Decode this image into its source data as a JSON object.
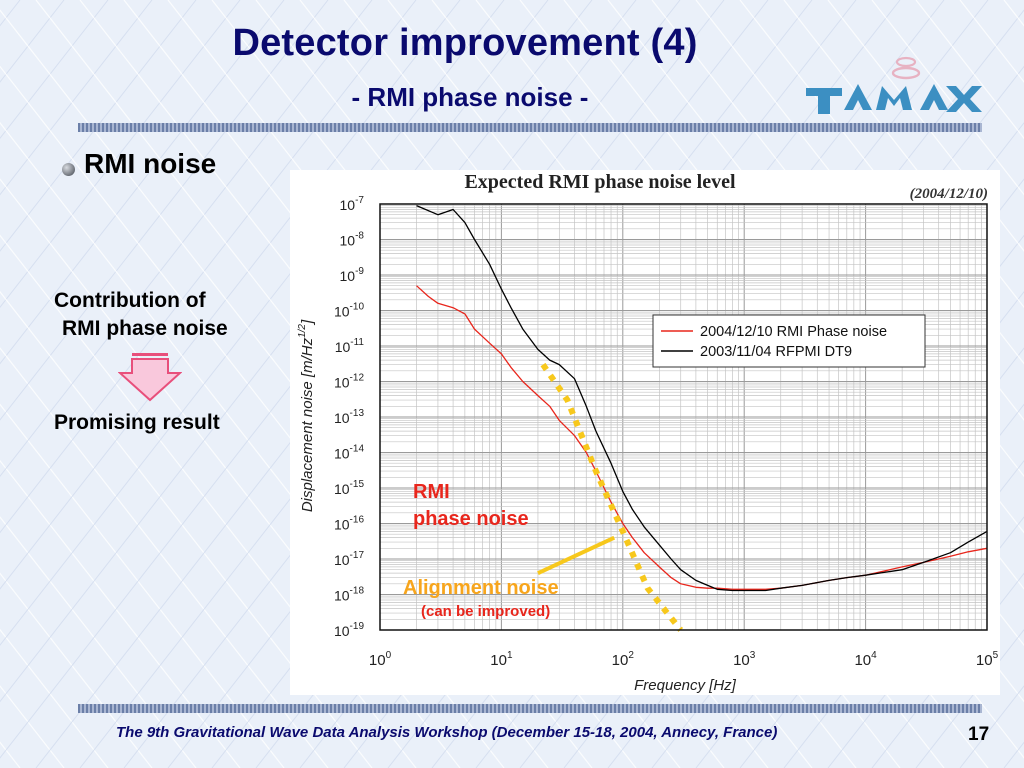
{
  "slide": {
    "title": "Detector improvement (4)",
    "subtitle": "- RMI phase noise -",
    "bullet": "RMI noise",
    "contribution_line1": "Contribution of",
    "contribution_line2": "RMI phase noise",
    "result": "Promising result",
    "footer": "The 9th Gravitational Wave Data Analysis Workshop  (December 15-18, 2004, Annecy, France)",
    "page_number": "17",
    "logo_icon": "tama-logo-icon"
  },
  "chart_data": {
    "type": "line",
    "title": "Expected RMI phase noise level",
    "date_note": "(2004/12/10)",
    "xlabel": "Frequency [Hz]",
    "ylabel": "Displacement noise [m/Hz",
    "ylabel_sup": "1/2",
    "ylabel_end": "]",
    "x_scale": "log",
    "y_scale": "log",
    "xlim": [
      1,
      100000
    ],
    "ylim": [
      1e-19,
      1e-07
    ],
    "x_ticks": [
      {
        "base": "10",
        "exp": "0",
        "value": 1
      },
      {
        "base": "10",
        "exp": "1",
        "value": 10
      },
      {
        "base": "10",
        "exp": "2",
        "value": 100
      },
      {
        "base": "10",
        "exp": "3",
        "value": 1000
      },
      {
        "base": "10",
        "exp": "4",
        "value": 10000
      },
      {
        "base": "10",
        "exp": "5",
        "value": 100000
      }
    ],
    "y_ticks": [
      {
        "base": "10",
        "exp": "-7",
        "value": 1e-07
      },
      {
        "base": "10",
        "exp": "-8",
        "value": 1e-08
      },
      {
        "base": "10",
        "exp": "-9",
        "value": 1e-09
      },
      {
        "base": "10",
        "exp": "-10",
        "value": 1e-10
      },
      {
        "base": "10",
        "exp": "-11",
        "value": 1e-11
      },
      {
        "base": "10",
        "exp": "-12",
        "value": 1e-12
      },
      {
        "base": "10",
        "exp": "-13",
        "value": 1e-13
      },
      {
        "base": "10",
        "exp": "-14",
        "value": 1e-14
      },
      {
        "base": "10",
        "exp": "-15",
        "value": 1e-15
      },
      {
        "base": "10",
        "exp": "-16",
        "value": 1e-16
      },
      {
        "base": "10",
        "exp": "-17",
        "value": 1e-17
      },
      {
        "base": "10",
        "exp": "-18",
        "value": 1e-18
      },
      {
        "base": "10",
        "exp": "-19",
        "value": 1e-19
      }
    ],
    "grid": true,
    "legend_position": "right-middle",
    "series": [
      {
        "name": "2004/12/10 RMI Phase noise",
        "color": "#e8261c",
        "x": [
          2,
          2.5,
          3,
          4,
          5,
          6,
          8,
          10,
          12,
          15,
          20,
          25,
          30,
          40,
          50,
          60,
          80,
          100,
          120,
          150,
          200,
          250,
          300,
          400,
          500,
          600,
          800,
          1000,
          1500,
          2000,
          3000,
          5000,
          7000,
          10000,
          20000,
          30000,
          50000,
          70000,
          100000
        ],
        "y": [
          5e-10,
          2.5e-10,
          1.6e-10,
          1.2e-10,
          8e-11,
          3e-11,
          1.2e-11,
          6e-12,
          2.5e-12,
          1e-12,
          4e-13,
          2e-13,
          8e-14,
          3e-14,
          1e-14,
          3e-15,
          4e-16,
          1e-16,
          4e-17,
          1.5e-17,
          6e-18,
          3e-18,
          2e-18,
          1.6e-18,
          1.5e-18,
          1.5e-18,
          1.4e-18,
          1.4e-18,
          1.4e-18,
          1.5e-18,
          1.8e-18,
          2.5e-18,
          3e-18,
          3.5e-18,
          6e-18,
          8e-18,
          1.2e-17,
          1.6e-17,
          2e-17
        ]
      },
      {
        "name": "2003/11/04 RFPMI DT9",
        "color": "#000000",
        "x": [
          2,
          3,
          4,
          5,
          6,
          8,
          10,
          12,
          15,
          20,
          25,
          30,
          40,
          50,
          60,
          80,
          100,
          120,
          150,
          200,
          250,
          300,
          400,
          500,
          600,
          800,
          1000,
          1500,
          2000,
          3000,
          5000,
          7000,
          10000,
          20000,
          30000,
          50000,
          70000,
          100000
        ],
        "y": [
          9e-08,
          5e-08,
          7e-08,
          3e-08,
          1e-08,
          2e-09,
          4e-10,
          1.2e-10,
          3e-11,
          8e-12,
          4e-12,
          3e-12,
          1.2e-12,
          2e-13,
          4e-14,
          5e-15,
          8e-16,
          2.5e-16,
          8e-17,
          2.5e-17,
          1e-17,
          5e-18,
          2.5e-18,
          1.8e-18,
          1.4e-18,
          1.3e-18,
          1.3e-18,
          1.3e-18,
          1.5e-18,
          1.8e-18,
          2.5e-18,
          3e-18,
          3.5e-18,
          5e-18,
          8e-18,
          1.5e-17,
          3e-17,
          6e-17
        ]
      }
    ],
    "alignment_line": {
      "color": "#f7c81c",
      "x": [
        22,
        35,
        60,
        100,
        160,
        300
      ],
      "y": [
        3e-12,
        3e-13,
        3e-15,
        6e-17,
        1.5e-18,
        1e-19
      ]
    },
    "annotations": {
      "rmi_line1": "RMI",
      "rmi_line2": "phase noise",
      "rmi_color": "#e8261c",
      "alignment": "Alignment noise",
      "alignment_sub": "(can be improved)",
      "alignment_color": "#f7a51c",
      "arrow_color": "#f7c81c",
      "arrow_from": {
        "x": 20,
        "y": 4e-18
      },
      "arrow_to": {
        "x": 85,
        "y": 4e-17
      }
    }
  }
}
